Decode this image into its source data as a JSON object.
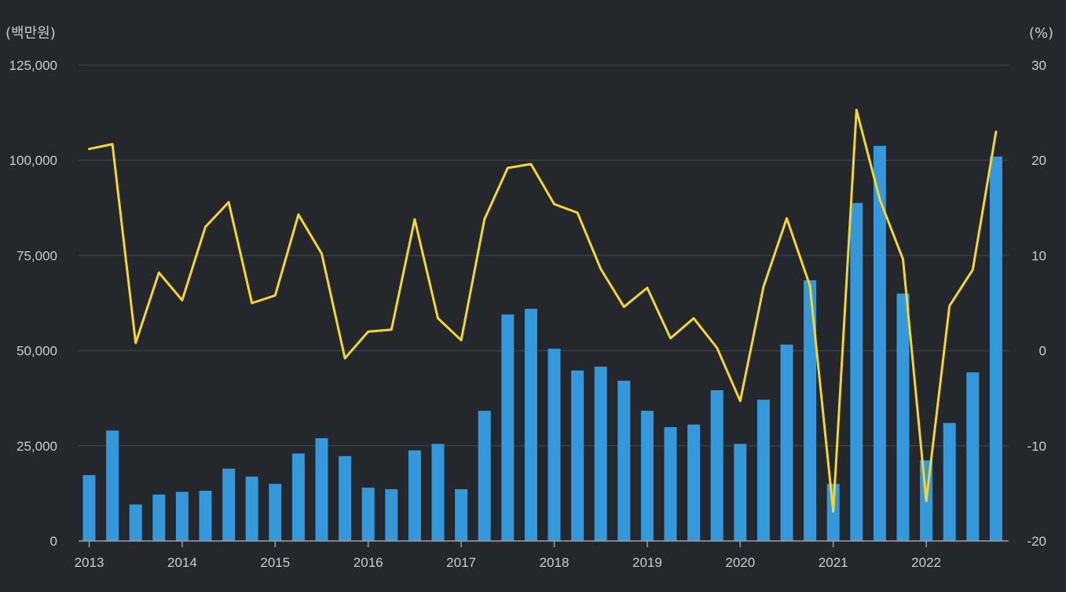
{
  "chart_data": {
    "type": "bar+line",
    "left_axis": {
      "unit_label": "(백만원)",
      "ylim": [
        0,
        125000
      ],
      "ticks": [
        0,
        25000,
        50000,
        75000,
        100000,
        125000
      ],
      "tick_labels": [
        "0",
        "25,000",
        "50,000",
        "75,000",
        "100,000",
        "125,000"
      ]
    },
    "right_axis": {
      "unit_label": "(%)",
      "ylim": [
        -20,
        30
      ],
      "ticks": [
        -20,
        -10,
        0,
        10,
        20,
        30
      ],
      "tick_labels": [
        "-20",
        "-10",
        "0",
        "10",
        "20",
        "30"
      ]
    },
    "x_axis": {
      "year_labels": [
        "2013",
        "2014",
        "2015",
        "2016",
        "2017",
        "2018",
        "2019",
        "2020",
        "2021",
        "2022"
      ]
    },
    "series": [
      {
        "name": "bar",
        "kind": "bar",
        "axis": "left",
        "color": "#3498db",
        "values": [
          17300,
          29000,
          9600,
          12200,
          12900,
          13200,
          19000,
          16900,
          15000,
          23000,
          27000,
          22300,
          14000,
          13600,
          23800,
          25500,
          13600,
          34200,
          59500,
          61000,
          50500,
          44800,
          45800,
          42100,
          34200,
          29900,
          30600,
          39600,
          25500,
          37100,
          51600,
          68500,
          15000,
          88800,
          103800,
          65000,
          21200,
          31000,
          44300,
          101000
        ]
      },
      {
        "name": "line",
        "kind": "line",
        "axis": "right",
        "color": "#f4d632",
        "values": [
          21.2,
          21.7,
          0.8,
          8.2,
          5.3,
          13.0,
          15.6,
          5.0,
          5.8,
          14.3,
          10.2,
          -0.8,
          2.0,
          2.2,
          13.8,
          3.4,
          1.1,
          13.8,
          19.2,
          19.6,
          15.4,
          14.5,
          8.6,
          4.6,
          6.6,
          1.3,
          3.4,
          0.3,
          -5.3,
          6.7,
          13.9,
          6.8,
          -16.9,
          25.3,
          15.9,
          9.6,
          -15.8,
          4.7,
          8.5,
          23.0
        ]
      }
    ]
  }
}
